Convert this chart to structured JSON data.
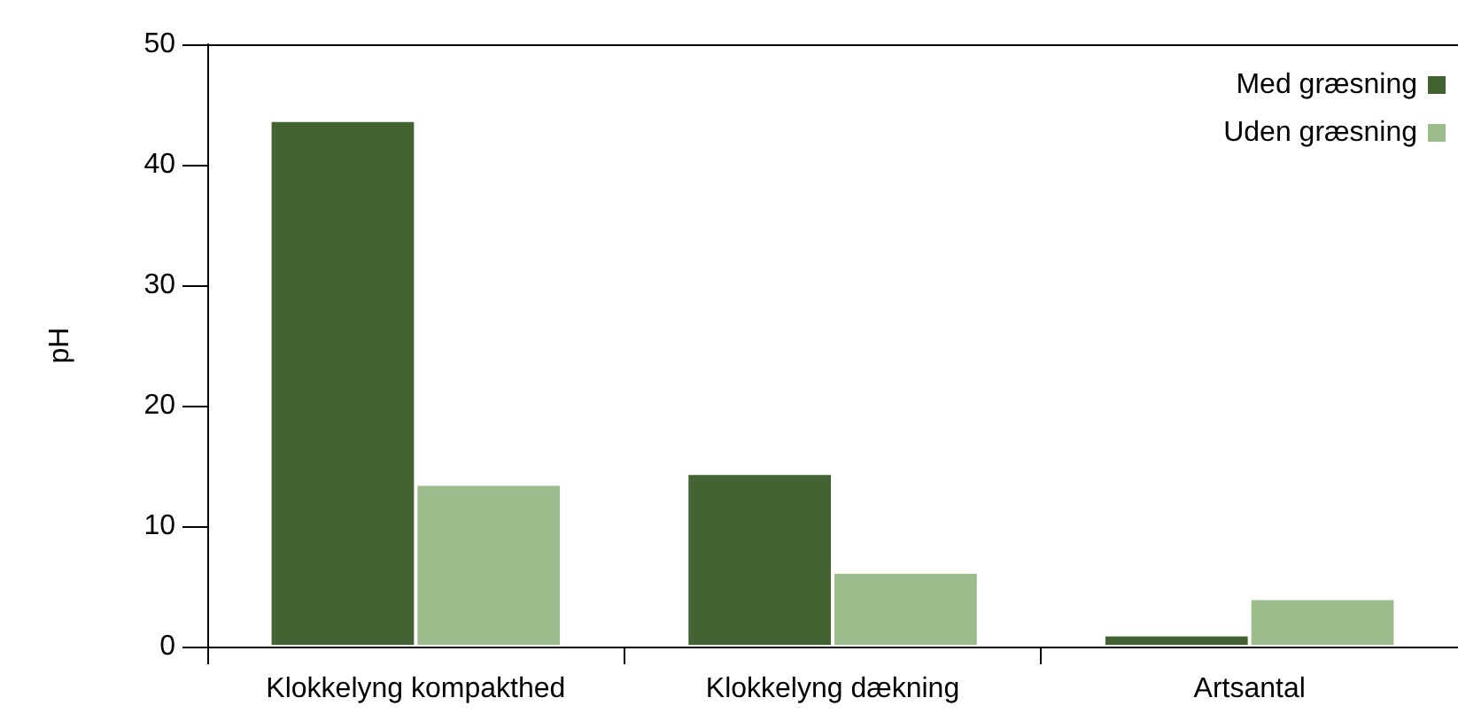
{
  "chart_data": {
    "type": "bar",
    "ylabel": "pH",
    "categories": [
      "Klokkelyng kompakthed",
      "Klokkelyng dækning",
      "Artsantal"
    ],
    "series": [
      {
        "name": "Med græsning",
        "color": "#436332",
        "values": [
          43.7,
          14.4,
          1.0
        ]
      },
      {
        "name": "Uden græsning",
        "color": "#9dbc8b",
        "values": [
          13.5,
          6.2,
          4.0
        ]
      }
    ],
    "ylim": [
      0,
      50
    ],
    "yticks": [
      0,
      10,
      20,
      30,
      40,
      50
    ],
    "grid": false,
    "legend": "top right"
  }
}
